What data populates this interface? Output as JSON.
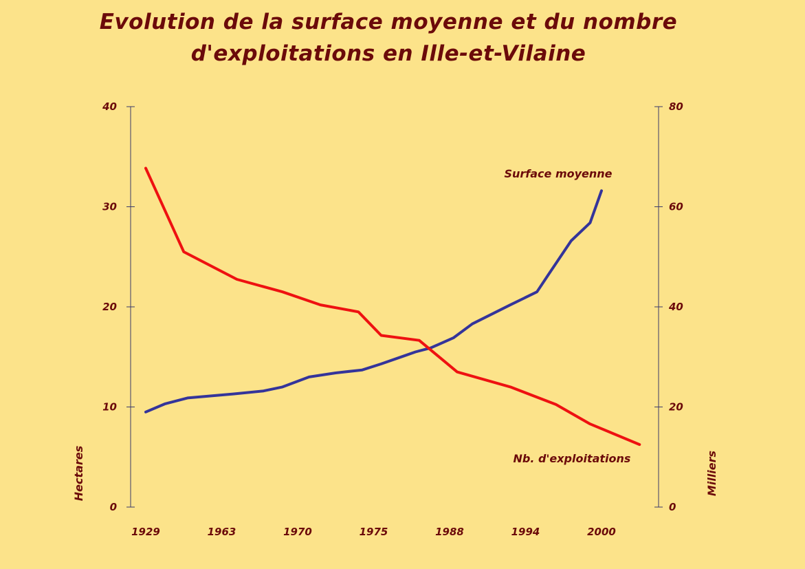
{
  "title": {
    "line1": "Evolution de la surface moyenne et du nombre",
    "line2": "d'exploitations en Ille-et-Vilaine"
  },
  "colors": {
    "background": "#FCE38A",
    "text": "#6B0A0A",
    "axis": "#3A3A6A",
    "series_surface": "#34349A",
    "series_exploitations": "#EE1111"
  },
  "chart_data": {
    "type": "line",
    "x_tick_labels": [
      "1929",
      "1963",
      "1970",
      "1975",
      "1988",
      "1994",
      "2000"
    ],
    "left_axis": {
      "label": "Hectares",
      "ylim": [
        0,
        40
      ],
      "ticks": [
        0,
        10,
        20,
        30,
        40
      ]
    },
    "right_axis": {
      "label": "Milliers",
      "ylim": [
        0,
        80
      ],
      "ticks": [
        0,
        20,
        40,
        60,
        80
      ]
    },
    "grid": false,
    "series": [
      {
        "name": "Surface moyenne",
        "axis": "left",
        "x_index": [
          0,
          0.25,
          0.55,
          0.85,
          1.15,
          1.55,
          1.8,
          2.15,
          2.5,
          2.85,
          3.1,
          3.4,
          3.55,
          3.75,
          4.05,
          4.3,
          4.8,
          5.15,
          5.3,
          5.6,
          5.85,
          6.0
        ],
        "values": [
          9.5,
          10.3,
          10.9,
          11.1,
          11.3,
          11.6,
          12.0,
          13.0,
          13.4,
          13.7,
          14.3,
          15.1,
          15.5,
          15.9,
          16.9,
          18.3,
          20.2,
          21.5,
          23.2,
          26.6,
          28.4,
          31.6
        ]
      },
      {
        "name": "Nb. d'exploitations",
        "axis": "right",
        "x_index": [
          0,
          0.5,
          1.2,
          1.8,
          2.3,
          2.8,
          3.1,
          3.6,
          4.1,
          4.8,
          5.4,
          5.85,
          6.5
        ],
        "values": [
          67.7,
          51.0,
          45.5,
          43.0,
          40.4,
          39.0,
          34.3,
          33.3,
          27.0,
          24.0,
          20.5,
          16.6,
          12.5
        ]
      }
    ]
  }
}
